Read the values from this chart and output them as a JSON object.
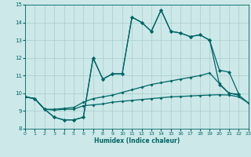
{
  "xlabel": "Humidex (Indice chaleur)",
  "xlim": [
    0,
    23
  ],
  "ylim": [
    8,
    15
  ],
  "xticks": [
    0,
    1,
    2,
    3,
    4,
    5,
    6,
    7,
    8,
    9,
    10,
    11,
    12,
    13,
    14,
    15,
    16,
    17,
    18,
    19,
    20,
    21,
    22,
    23
  ],
  "yticks": [
    8,
    9,
    10,
    11,
    12,
    13,
    14,
    15
  ],
  "bg_color": "#cce8e8",
  "grid_color": "#aacccc",
  "line_color": "#006666",
  "line1_y": [
    9.8,
    9.7,
    9.1,
    8.65,
    8.5,
    8.5,
    8.65,
    12.0,
    10.8,
    11.1,
    11.1,
    14.3,
    14.0,
    13.5,
    14.7,
    13.5,
    13.4,
    13.2,
    13.3,
    13.0,
    11.3,
    11.2,
    9.95,
    null
  ],
  "line2_y": [
    9.8,
    9.7,
    9.1,
    8.65,
    8.5,
    8.5,
    8.65,
    12.0,
    10.8,
    11.1,
    11.1,
    14.3,
    14.0,
    13.5,
    14.7,
    13.5,
    13.4,
    13.2,
    13.3,
    13.0,
    10.5,
    10.0,
    9.95,
    null
  ],
  "line3_y": [
    9.8,
    9.7,
    9.1,
    9.1,
    9.15,
    9.2,
    9.5,
    9.7,
    9.8,
    9.9,
    10.05,
    10.2,
    10.35,
    10.5,
    10.6,
    10.7,
    10.8,
    10.9,
    11.0,
    11.15,
    10.55,
    10.0,
    9.9,
    9.45
  ],
  "line4_y": [
    9.8,
    9.7,
    9.1,
    9.05,
    9.1,
    9.1,
    9.3,
    9.35,
    9.4,
    9.5,
    9.55,
    9.6,
    9.65,
    9.7,
    9.75,
    9.8,
    9.82,
    9.85,
    9.88,
    9.9,
    9.92,
    9.9,
    9.8,
    9.45
  ]
}
